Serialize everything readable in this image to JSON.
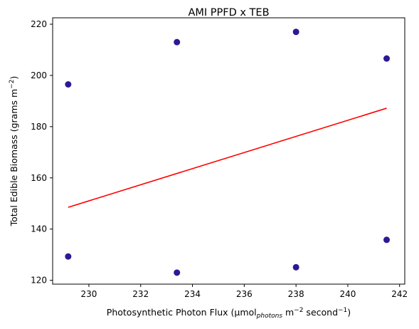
{
  "chart_data": {
    "type": "scatter",
    "title": "AMI PPFD x TEB",
    "xlabel": {
      "prefix": "Photosynthetic Photon Flux (μmol",
      "sub": "photons",
      "mid1": " m",
      "sup1": "−2",
      "mid2": " second",
      "sup2": "−1",
      "suffix": ")"
    },
    "ylabel": {
      "prefix": "Total Edible Biomass (grams m",
      "sup": "−2",
      "suffix": ")"
    },
    "xlim": [
      228.6,
      242.2
    ],
    "ylim": [
      118.5,
      222.5
    ],
    "xticks": [
      230,
      232,
      234,
      236,
      238,
      240,
      242
    ],
    "yticks": [
      120,
      140,
      160,
      180,
      200,
      220
    ],
    "grid": false,
    "points": [
      {
        "x": 229.2,
        "y": 196.5
      },
      {
        "x": 229.2,
        "y": 129.3
      },
      {
        "x": 233.4,
        "y": 213.0
      },
      {
        "x": 233.4,
        "y": 123.0
      },
      {
        "x": 238.0,
        "y": 217.0
      },
      {
        "x": 238.0,
        "y": 125.1
      },
      {
        "x": 241.5,
        "y": 206.6
      },
      {
        "x": 241.5,
        "y": 135.8
      }
    ],
    "fit_line": {
      "x": [
        229.2,
        241.5
      ],
      "y": [
        148.5,
        187.2
      ]
    },
    "colors": {
      "points": "#2a1a94",
      "fit_line": "#ff0000"
    }
  }
}
